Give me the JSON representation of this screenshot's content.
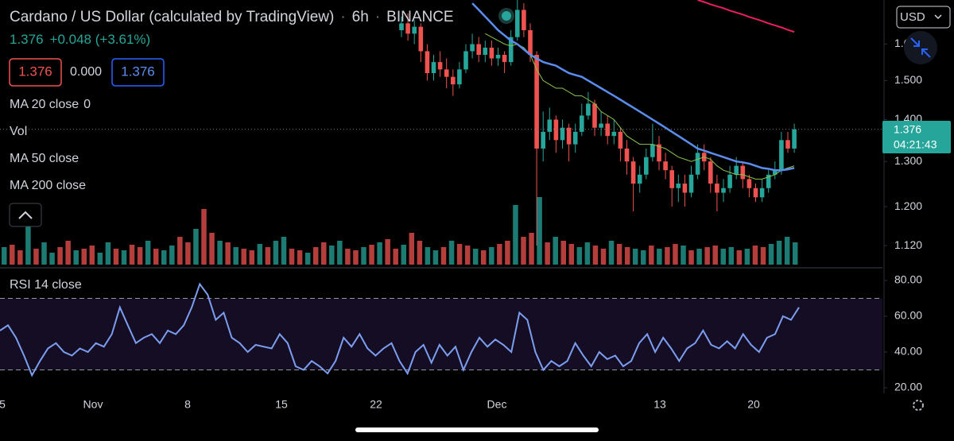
{
  "header": {
    "symbol": "Cardano / US Dollar (calculated by TradingView)",
    "separator": "·",
    "interval": "6h",
    "exchange": "BINANCE",
    "price": "1.376",
    "change": "+0.048 (+3.61%)",
    "sell": "1.376",
    "spread": "0.000",
    "buy": "1.376",
    "currency": "USD"
  },
  "indicators": [
    {
      "name": "MA 20 close",
      "value": "0"
    },
    {
      "name": "Vol"
    },
    {
      "name": "MA 50 close"
    },
    {
      "name": "MA 200 close"
    },
    {
      "name": "RSI 14 close"
    }
  ],
  "x_axis_labels": [
    "5",
    "Nov",
    "8",
    "15",
    "22",
    "Dec",
    "13",
    "20"
  ],
  "chart_data": [
    {
      "type": "candlestick",
      "log_scale": true,
      "ylim": [
        1.08,
        1.73
      ],
      "yticks": [
        {
          "value": 1.6,
          "label": "1.600"
        },
        {
          "value": 1.5,
          "label": "1.500"
        },
        {
          "value": 1.4,
          "label": "1.400"
        },
        {
          "value": 1.3,
          "label": "1.300"
        },
        {
          "value": 1.2,
          "label": "1.200"
        },
        {
          "value": 1.12,
          "label": "1.120"
        }
      ],
      "up_color": "#26a69a",
      "down_color": "#ef5350",
      "last_label": "1.376",
      "countdown": "04:21:43",
      "open": [
        1.64,
        1.66,
        1.63,
        1.65,
        1.58,
        1.52,
        1.55,
        1.53,
        1.51,
        1.49,
        1.53,
        1.58,
        1.6,
        1.57,
        1.59,
        1.56,
        1.57,
        1.55,
        1.62,
        1.7,
        1.64,
        1.57,
        1.33,
        1.37,
        1.4,
        1.35,
        1.38,
        1.34,
        1.37,
        1.41,
        1.44,
        1.38,
        1.39,
        1.36,
        1.37,
        1.33,
        1.3,
        1.25,
        1.27,
        1.31,
        1.34,
        1.3,
        1.28,
        1.24,
        1.25,
        1.23,
        1.27,
        1.32,
        1.3,
        1.25,
        1.23,
        1.24,
        1.27,
        1.29,
        1.26,
        1.24,
        1.22,
        1.24,
        1.27,
        1.28,
        1.35,
        1.33
      ],
      "high": [
        1.68,
        1.69,
        1.67,
        1.66,
        1.6,
        1.57,
        1.58,
        1.56,
        1.53,
        1.55,
        1.6,
        1.63,
        1.62,
        1.61,
        1.61,
        1.59,
        1.58,
        1.64,
        1.73,
        1.72,
        1.66,
        1.58,
        1.42,
        1.43,
        1.41,
        1.4,
        1.39,
        1.39,
        1.44,
        1.47,
        1.45,
        1.42,
        1.41,
        1.4,
        1.38,
        1.35,
        1.31,
        1.29,
        1.33,
        1.39,
        1.36,
        1.32,
        1.29,
        1.27,
        1.27,
        1.29,
        1.34,
        1.34,
        1.31,
        1.27,
        1.26,
        1.29,
        1.31,
        1.3,
        1.27,
        1.25,
        1.26,
        1.28,
        1.3,
        1.37,
        1.37,
        1.39
      ],
      "low": [
        1.62,
        1.61,
        1.6,
        1.55,
        1.5,
        1.5,
        1.51,
        1.48,
        1.46,
        1.48,
        1.52,
        1.56,
        1.55,
        1.55,
        1.54,
        1.54,
        1.52,
        1.54,
        1.61,
        1.62,
        1.55,
        1.12,
        1.3,
        1.35,
        1.32,
        1.33,
        1.3,
        1.32,
        1.36,
        1.4,
        1.36,
        1.36,
        1.34,
        1.34,
        1.3,
        1.27,
        1.19,
        1.23,
        1.26,
        1.3,
        1.28,
        1.26,
        1.2,
        1.21,
        1.2,
        1.22,
        1.26,
        1.28,
        1.23,
        1.19,
        1.21,
        1.23,
        1.26,
        1.24,
        1.22,
        1.21,
        1.21,
        1.23,
        1.26,
        1.27,
        1.32,
        1.32
      ],
      "close": [
        1.66,
        1.63,
        1.65,
        1.58,
        1.52,
        1.55,
        1.53,
        1.51,
        1.49,
        1.53,
        1.58,
        1.6,
        1.57,
        1.59,
        1.56,
        1.57,
        1.55,
        1.62,
        1.7,
        1.64,
        1.57,
        1.33,
        1.37,
        1.4,
        1.35,
        1.38,
        1.34,
        1.37,
        1.41,
        1.44,
        1.38,
        1.39,
        1.36,
        1.37,
        1.33,
        1.3,
        1.25,
        1.27,
        1.31,
        1.34,
        1.3,
        1.28,
        1.24,
        1.25,
        1.23,
        1.27,
        1.32,
        1.3,
        1.25,
        1.23,
        1.24,
        1.27,
        1.29,
        1.26,
        1.24,
        1.22,
        1.24,
        1.27,
        1.28,
        1.35,
        1.33,
        1.376
      ],
      "lines": [
        {
          "color": "#8bc34a",
          "width": 1,
          "values": [
            null,
            null,
            null,
            null,
            null,
            null,
            null,
            null,
            null,
            null,
            null,
            null,
            null,
            1.63,
            1.62,
            1.61,
            1.6,
            1.595,
            1.6,
            1.59,
            1.57,
            1.53,
            1.5,
            1.49,
            1.48,
            1.48,
            1.47,
            1.46,
            1.46,
            1.45,
            1.44,
            1.42,
            1.41,
            1.4,
            1.38,
            1.36,
            1.35,
            1.34,
            1.34,
            1.34,
            1.335,
            1.33,
            1.32,
            1.31,
            1.305,
            1.3,
            1.305,
            1.31,
            1.305,
            1.29,
            1.28,
            1.275,
            1.27,
            1.27,
            1.265,
            1.26,
            1.26,
            1.265,
            1.27,
            1.28,
            1.285,
            1.29
          ]
        },
        {
          "color": "#5b8def",
          "width": 2.5,
          "values": [
            null,
            null,
            null,
            null,
            null,
            null,
            null,
            null,
            null,
            null,
            null,
            1.72,
            1.7,
            1.68,
            1.66,
            1.64,
            1.625,
            1.61,
            1.6,
            1.585,
            1.57,
            1.56,
            1.55,
            1.545,
            1.54,
            1.53,
            1.52,
            1.515,
            1.51,
            1.5,
            1.49,
            1.48,
            1.47,
            1.46,
            1.45,
            1.44,
            1.43,
            1.42,
            1.41,
            1.4,
            1.39,
            1.38,
            1.37,
            1.36,
            1.35,
            1.34,
            1.33,
            1.325,
            1.32,
            1.315,
            1.31,
            1.305,
            1.3,
            1.298,
            1.295,
            1.29,
            1.285,
            1.283,
            1.28,
            1.28,
            1.282,
            1.285
          ]
        },
        {
          "color": "#e91e63",
          "width": 2,
          "values": [
            null,
            null,
            null,
            null,
            null,
            null,
            null,
            null,
            null,
            null,
            null,
            null,
            null,
            null,
            null,
            null,
            null,
            null,
            null,
            null,
            null,
            null,
            null,
            null,
            null,
            null,
            null,
            null,
            null,
            null,
            null,
            null,
            null,
            null,
            null,
            null,
            null,
            null,
            null,
            null,
            null,
            null,
            null,
            null,
            null,
            null,
            1.73,
            1.724,
            1.717,
            1.711,
            1.705,
            1.698,
            1.692,
            1.686,
            1.679,
            1.673,
            1.667,
            1.66,
            1.654,
            1.648,
            1.641,
            1.635
          ]
        }
      ]
    },
    {
      "type": "bar",
      "ylim": [
        0,
        100
      ],
      "up_color": "#26a69a",
      "down_color": "#ef5350",
      "values": [
        22,
        25,
        18,
        48,
        20,
        28,
        15,
        22,
        30,
        18,
        20,
        24,
        15,
        28,
        20,
        18,
        25,
        22,
        30,
        20,
        18,
        24,
        35,
        28,
        45,
        70,
        40,
        30,
        28,
        22,
        20,
        18,
        26,
        22,
        30,
        35,
        20,
        18,
        15,
        22,
        28,
        24,
        30,
        20,
        18,
        22,
        25,
        28,
        32,
        20,
        25,
        40,
        30,
        22,
        18,
        22,
        30,
        26,
        24,
        20,
        18,
        22,
        26,
        30,
        75,
        35,
        40,
        85,
        28,
        35,
        30,
        26,
        22,
        28,
        24,
        20,
        30,
        26,
        22,
        20,
        18,
        24,
        20,
        22,
        26,
        24,
        18,
        20,
        22,
        24,
        20,
        22,
        18,
        20,
        24,
        22,
        26,
        30,
        35,
        28
      ],
      "up": [
        1,
        0,
        0,
        1,
        0,
        1,
        1,
        0,
        0,
        1,
        0,
        0,
        1,
        1,
        0,
        1,
        0,
        0,
        1,
        0,
        1,
        1,
        0,
        0,
        1,
        0,
        0,
        1,
        0,
        1,
        0,
        0,
        1,
        0,
        1,
        1,
        0,
        0,
        1,
        0,
        0,
        1,
        1,
        0,
        0,
        1,
        0,
        1,
        0,
        0,
        1,
        0,
        0,
        1,
        1,
        0,
        1,
        0,
        0,
        1,
        0,
        1,
        0,
        0,
        1,
        0,
        0,
        1,
        0,
        1,
        0,
        0,
        1,
        1,
        0,
        0,
        1,
        0,
        0,
        1,
        1,
        0,
        1,
        0,
        0,
        1,
        0,
        1,
        0,
        0,
        1,
        1,
        0,
        1,
        0,
        0,
        1,
        1,
        1,
        1
      ]
    },
    {
      "type": "line",
      "color": "#7b9ef0",
      "ylim": [
        14,
        86
      ],
      "band": [
        30,
        70
      ],
      "band_color": "#150d24",
      "yticks": [
        {
          "value": 80,
          "label": "80.00"
        },
        {
          "value": 60,
          "label": "60.00"
        },
        {
          "value": 40,
          "label": "40.00"
        },
        {
          "value": 20,
          "label": "20.00"
        }
      ],
      "values": [
        52,
        55,
        48,
        38,
        27,
        35,
        42,
        45,
        40,
        38,
        42,
        40,
        45,
        43,
        50,
        65,
        55,
        45,
        48,
        50,
        45,
        52,
        50,
        55,
        65,
        78,
        72,
        58,
        62,
        48,
        45,
        40,
        44,
        43,
        42,
        50,
        45,
        32,
        30,
        35,
        32,
        28,
        35,
        48,
        43,
        50,
        42,
        38,
        42,
        45,
        35,
        28,
        40,
        44,
        34,
        44,
        38,
        43,
        30,
        40,
        48,
        43,
        47,
        44,
        40,
        62,
        58,
        40,
        30,
        35,
        32,
        35,
        45,
        38,
        32,
        40,
        36,
        38,
        32,
        35,
        45,
        50,
        40,
        48,
        42,
        35,
        42,
        45,
        52,
        44,
        42,
        46,
        42,
        50,
        44,
        40,
        48,
        50,
        60,
        58,
        65
      ]
    }
  ]
}
